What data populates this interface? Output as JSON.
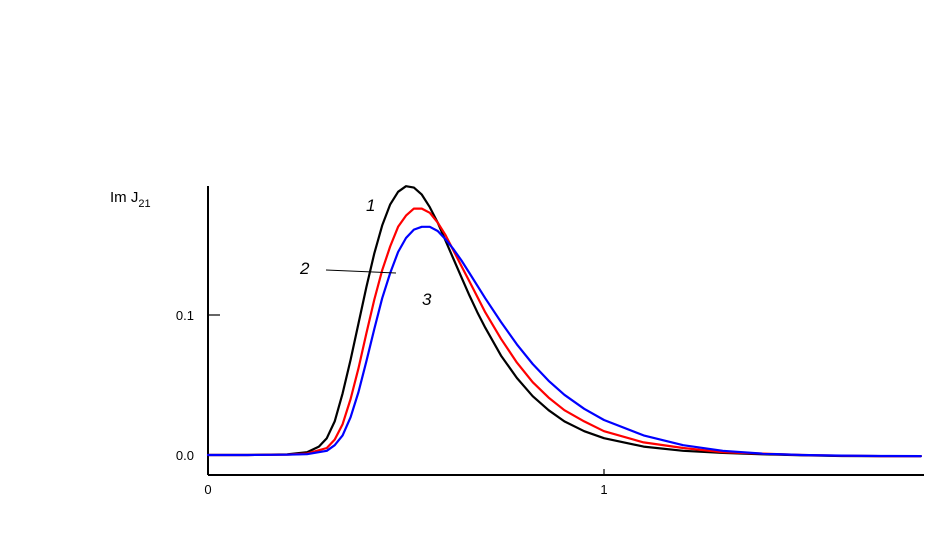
{
  "chart_data": {
    "type": "line",
    "ylabel_main": "Im J",
    "ylabel_sub": "21",
    "xlabel": "",
    "title": "",
    "xlim": [
      0,
      1.8
    ],
    "ylim": [
      0,
      0.2
    ],
    "x_ticks": [
      {
        "value": 0,
        "label": "0"
      },
      {
        "value": 1,
        "label": "1"
      }
    ],
    "y_ticks": [
      {
        "value": 0.0,
        "label": "0.0"
      },
      {
        "value": 0.1,
        "label": "0.1"
      }
    ],
    "grid": false,
    "series": [
      {
        "name": "1",
        "color": "#000000",
        "x": [
          0,
          0.1,
          0.2,
          0.25,
          0.28,
          0.3,
          0.32,
          0.34,
          0.36,
          0.38,
          0.4,
          0.42,
          0.44,
          0.46,
          0.48,
          0.5,
          0.52,
          0.54,
          0.56,
          0.58,
          0.6,
          0.62,
          0.64,
          0.66,
          0.68,
          0.7,
          0.74,
          0.78,
          0.82,
          0.86,
          0.9,
          0.95,
          1.0,
          1.1,
          1.2,
          1.3,
          1.4,
          1.5,
          1.6,
          1.7,
          1.8
        ],
        "values": [
          0.0,
          0.0,
          0.0005,
          0.002,
          0.006,
          0.012,
          0.024,
          0.044,
          0.068,
          0.094,
          0.12,
          0.144,
          0.164,
          0.179,
          0.188,
          0.192,
          0.191,
          0.186,
          0.177,
          0.166,
          0.153,
          0.14,
          0.127,
          0.114,
          0.102,
          0.091,
          0.071,
          0.055,
          0.042,
          0.032,
          0.024,
          0.017,
          0.012,
          0.006,
          0.003,
          0.0015,
          0.0005,
          -0.0002,
          -0.0007,
          -0.0008,
          -0.0008
        ]
      },
      {
        "name": "2",
        "color": "#ff0000",
        "x": [
          0,
          0.1,
          0.2,
          0.25,
          0.3,
          0.32,
          0.34,
          0.36,
          0.38,
          0.4,
          0.42,
          0.44,
          0.46,
          0.48,
          0.5,
          0.52,
          0.54,
          0.56,
          0.58,
          0.6,
          0.62,
          0.64,
          0.66,
          0.68,
          0.7,
          0.74,
          0.78,
          0.82,
          0.86,
          0.9,
          0.95,
          1.0,
          1.1,
          1.2,
          1.3,
          1.4,
          1.5,
          1.6,
          1.7,
          1.8
        ],
        "values": [
          0.0,
          0.0,
          0.0003,
          0.001,
          0.005,
          0.011,
          0.022,
          0.04,
          0.062,
          0.087,
          0.111,
          0.132,
          0.149,
          0.163,
          0.171,
          0.176,
          0.176,
          0.173,
          0.166,
          0.157,
          0.146,
          0.135,
          0.124,
          0.113,
          0.102,
          0.083,
          0.066,
          0.052,
          0.041,
          0.032,
          0.024,
          0.017,
          0.009,
          0.005,
          0.002,
          0.001,
          0.0,
          -0.0005,
          -0.0008,
          -0.0008
        ]
      },
      {
        "name": "3",
        "color": "#0000ff",
        "x": [
          0,
          0.1,
          0.2,
          0.25,
          0.3,
          0.32,
          0.34,
          0.36,
          0.38,
          0.4,
          0.42,
          0.44,
          0.46,
          0.48,
          0.5,
          0.52,
          0.54,
          0.56,
          0.58,
          0.6,
          0.62,
          0.64,
          0.66,
          0.68,
          0.7,
          0.74,
          0.78,
          0.82,
          0.86,
          0.9,
          0.95,
          1.0,
          1.1,
          1.2,
          1.3,
          1.4,
          1.5,
          1.6,
          1.7,
          1.8
        ],
        "values": [
          0.0,
          0.0,
          0.0002,
          0.0006,
          0.003,
          0.007,
          0.014,
          0.027,
          0.045,
          0.067,
          0.09,
          0.112,
          0.13,
          0.145,
          0.155,
          0.161,
          0.163,
          0.163,
          0.16,
          0.154,
          0.147,
          0.139,
          0.13,
          0.121,
          0.112,
          0.095,
          0.079,
          0.065,
          0.053,
          0.043,
          0.033,
          0.025,
          0.014,
          0.007,
          0.003,
          0.001,
          0.0,
          -0.0004,
          -0.0007,
          -0.0008
        ]
      }
    ],
    "annotations": [
      {
        "text": "1",
        "series": "1"
      },
      {
        "text": "2",
        "series": "2"
      },
      {
        "text": "3",
        "series": "3"
      }
    ]
  }
}
